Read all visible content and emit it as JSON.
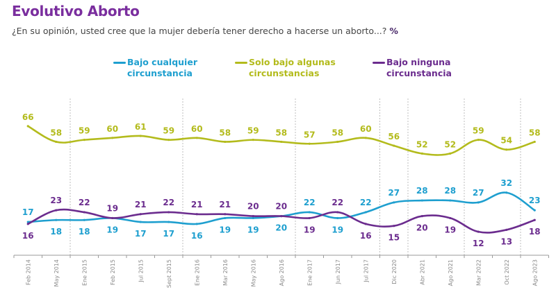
{
  "header": {
    "title": "Evolutivo Aborto",
    "subtitle": "¿En su opinión, usted cree que la mujer debería tener derecho a hacerse un aborto...?",
    "unit": "%"
  },
  "colors": {
    "title": "#7a2e9e",
    "bajo_cualquier": "#1e9fcf",
    "solo_bajo_algunas": "#b3bb1c",
    "bajo_ninguna": "#6b2c8e",
    "grid": "#bdbdbd",
    "axis": "#9a9a9a"
  },
  "legend": [
    {
      "line1": "Bajo cualquier",
      "line2": "circunstancia"
    },
    {
      "line1": "Solo bajo algunas",
      "line2": "circunstancias"
    },
    {
      "line1": "Bajo ninguna",
      "line2": "circunstancia"
    }
  ],
  "chart_data": {
    "type": "line",
    "title": "Evolutivo Aborto",
    "subtitle": "¿En su opinión, usted cree que la mujer debería tener derecho a hacerse un aborto...? %",
    "xlabel": "",
    "ylabel": "",
    "ylim": [
      0,
      70
    ],
    "grid": false,
    "legend_position": "top",
    "categories": [
      "Feb 2014",
      "May 2014",
      "Ene 2015",
      "Feb 2015",
      "Jul 2015",
      "Sept 2015",
      "Ene 2016",
      "Mar 2016",
      "May 2016",
      "Ago 2016",
      "Ene 2017",
      "Jun 2017",
      "Jul 2017",
      "Dic 2020",
      "Abr 2021",
      "Ago 2021",
      "Mar 2022",
      "Oct 2022",
      "Ago 2023"
    ],
    "year_separators_after": [
      "May 2014",
      "Sept 2015",
      "Ago 2016",
      "Jul 2017",
      "Dic 2020",
      "Ago 2021",
      "Oct 2022"
    ],
    "series": [
      {
        "name": "Bajo cualquier circunstancia",
        "values": [
          17,
          18,
          18,
          19,
          17,
          17,
          16,
          19,
          19,
          20,
          22,
          19,
          22,
          27,
          28,
          28,
          27,
          32,
          23
        ]
      },
      {
        "name": "Solo bajo algunas circunstancias",
        "values": [
          66,
          58,
          59,
          60,
          61,
          59,
          60,
          58,
          59,
          58,
          57,
          58,
          60,
          56,
          52,
          52,
          59,
          54,
          58
        ]
      },
      {
        "name": "Bajo ninguna circunstancia",
        "values": [
          16,
          23,
          22,
          19,
          21,
          22,
          21,
          21,
          20,
          20,
          19,
          22,
          16,
          15,
          20,
          19,
          12,
          13,
          18
        ]
      }
    ]
  }
}
